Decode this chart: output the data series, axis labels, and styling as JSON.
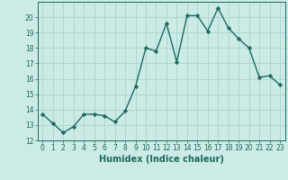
{
  "x": [
    0,
    1,
    2,
    3,
    4,
    5,
    6,
    7,
    8,
    9,
    10,
    11,
    12,
    13,
    14,
    15,
    16,
    17,
    18,
    19,
    20,
    21,
    22,
    23
  ],
  "y": [
    13.7,
    13.1,
    12.5,
    12.9,
    13.7,
    13.7,
    13.6,
    13.2,
    13.9,
    15.5,
    18.0,
    17.8,
    19.6,
    17.1,
    20.1,
    20.1,
    19.1,
    20.6,
    19.3,
    18.6,
    18.0,
    16.1,
    16.2,
    15.6
  ],
  "line_color": "#1a6b5a",
  "marker": "D",
  "markersize": 2.2,
  "linewidth": 1.0,
  "bg_color": "#cceae6",
  "grid_color": "#aad4ce",
  "xlabel": "Humidex (Indice chaleur)",
  "ylim": [
    12,
    21
  ],
  "xlim": [
    -0.5,
    23.5
  ],
  "yticks": [
    12,
    13,
    14,
    15,
    16,
    17,
    18,
    19,
    20
  ],
  "xticks": [
    0,
    1,
    2,
    3,
    4,
    5,
    6,
    7,
    8,
    9,
    10,
    11,
    12,
    13,
    14,
    15,
    16,
    17,
    18,
    19,
    20,
    21,
    22,
    23
  ],
  "tick_fontsize": 5.5,
  "label_fontsize": 7.0
}
